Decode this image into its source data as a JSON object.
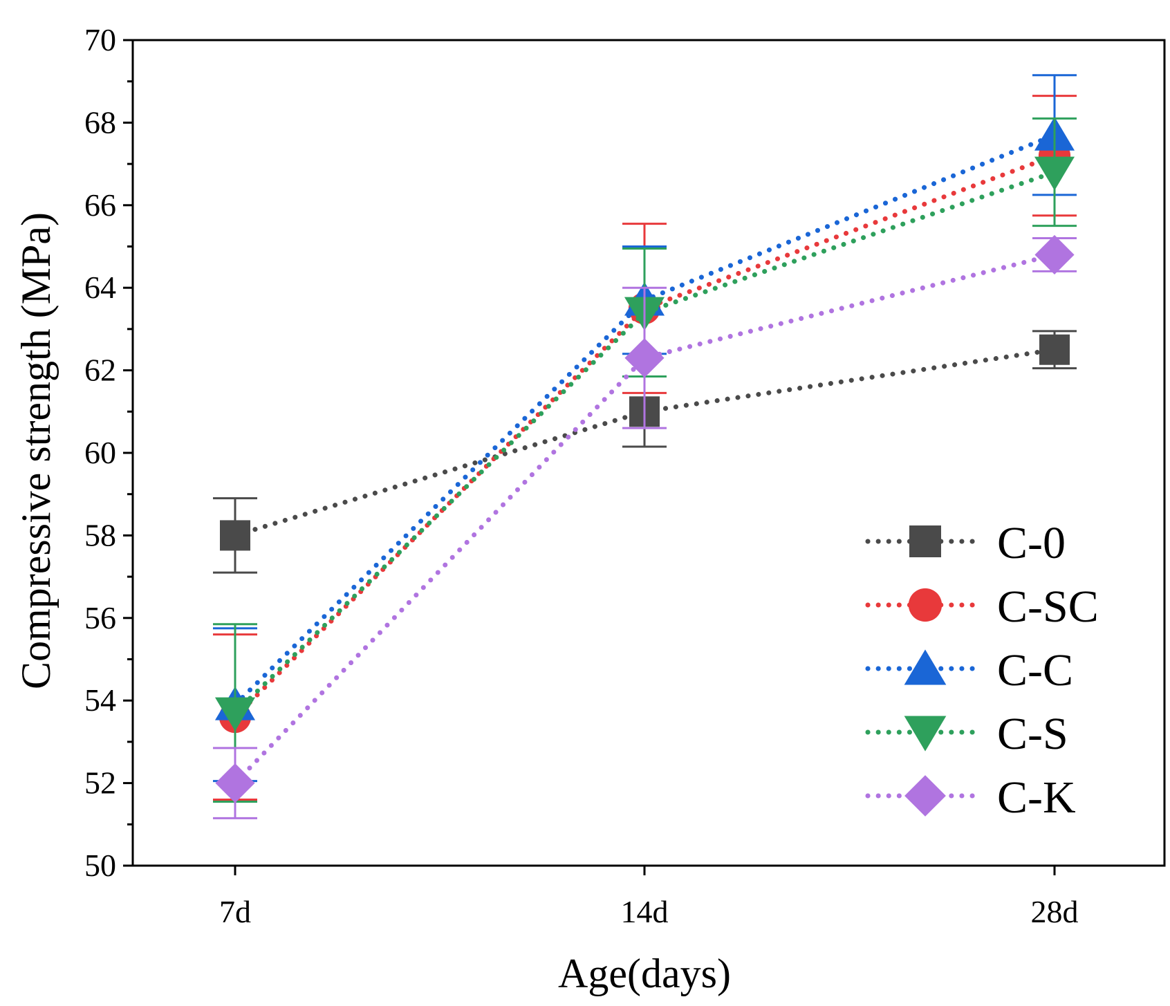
{
  "chart_data": {
    "type": "line",
    "title": "",
    "xlabel": "Age(days)",
    "ylabel": "Compressive strength (MPa)",
    "categories": [
      "7d",
      "14d",
      "28d"
    ],
    "ylim": [
      50,
      70
    ],
    "yticks": [
      50,
      52,
      54,
      56,
      58,
      60,
      62,
      64,
      66,
      68,
      70
    ],
    "legend_position": "bottom-right",
    "series": [
      {
        "name": "C-0",
        "color": "#4a4a4a",
        "marker": "square",
        "values": [
          58.0,
          61.0,
          62.5
        ],
        "errors": [
          0.9,
          0.85,
          0.45
        ]
      },
      {
        "name": "C-SC",
        "color": "#e8393b",
        "marker": "circle",
        "values": [
          53.6,
          63.5,
          67.2
        ],
        "errors": [
          2.0,
          2.05,
          1.45
        ]
      },
      {
        "name": "C-C",
        "color": "#1a66d6",
        "marker": "triangle-up",
        "values": [
          53.9,
          63.7,
          67.7
        ],
        "errors": [
          1.85,
          1.3,
          1.45
        ]
      },
      {
        "name": "C-S",
        "color": "#2ea05c",
        "marker": "triangle-down",
        "values": [
          53.7,
          63.4,
          66.8
        ],
        "errors": [
          2.15,
          1.55,
          1.3
        ]
      },
      {
        "name": "C-K",
        "color": "#b074e0",
        "marker": "diamond",
        "values": [
          52.0,
          62.3,
          64.8
        ],
        "errors": [
          0.85,
          1.7,
          0.4
        ]
      }
    ]
  }
}
